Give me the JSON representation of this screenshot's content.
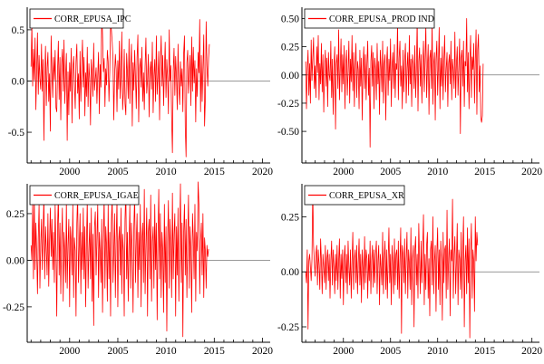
{
  "figure": {
    "background": "#ffffff",
    "line_color": "#ff0000",
    "axis_color": "#000000",
    "zero_line_color": "#777777"
  },
  "chart_data": [
    {
      "type": "line",
      "legend": "CORR_EPUSA_IPC",
      "legend_position": "top-left",
      "grid": false,
      "xlim": [
        1995.6,
        2020.8
      ],
      "ylim": [
        -0.8,
        0.72
      ],
      "x_ticks": [
        2000,
        2005,
        2010,
        2015,
        2020
      ],
      "x_tick_labels": [
        "2000",
        "2005",
        "2010",
        "2015",
        "2020"
      ],
      "y_ticks": [
        0.5,
        0.0,
        -0.5
      ],
      "y_tick_labels": [
        "0.5",
        "0.0",
        "-0.5"
      ],
      "x_start": 1996.0,
      "x_step": 0.0833,
      "series": [
        {
          "name": "CORR_EPUSA_IPC",
          "values": [
            0.14,
            0.55,
            -0.05,
            0.31,
            0.01,
            0.42,
            -0.28,
            0.12,
            0.47,
            -0.13,
            0.25,
            0.02,
            -0.08,
            0.36,
            -0.1,
            0.21,
            -0.58,
            0.05,
            0.34,
            -0.24,
            0.13,
            0.28,
            -0.2,
            0.07,
            -0.49,
            0.44,
            0.1,
            -0.16,
            0.23,
            0.01,
            0.3,
            -0.26,
            -0.3,
            0.11,
            0.39,
            -0.18,
            0.23,
            -0.38,
            0.15,
            0.31,
            -0.1,
            0.4,
            -0.22,
            0.05,
            0.27,
            -0.58,
            0.09,
            -0.33,
            0.18,
            -0.1,
            0.32,
            -0.41,
            0.12,
            0.24,
            -0.03,
            -0.27,
            0.19,
            0.36,
            -0.12,
            0.07,
            -0.37,
            0.29,
            -0.2,
            0.14,
            0.4,
            -0.06,
            0.23,
            -0.34,
            0.08,
            -0.15,
            0.33,
            -0.25,
            0.17,
            0.02,
            -0.43,
            0.21,
            0.09,
            -0.15,
            0.37,
            -0.09,
            0.02,
            0.13,
            -0.22,
            0.05,
            0.28,
            -0.32,
            0.16,
            -0.06,
            0.68,
            0.45,
            0.09,
            0.22,
            -0.25,
            0.12,
            -0.04,
            0.3,
            0.19,
            -0.2,
            0.1,
            0.57,
            0.5,
            0.38,
            0.22,
            -0.38,
            0.07,
            0.26,
            0.11,
            -0.3,
            0.2,
            -0.08,
            0.39,
            -0.17,
            0.05,
            0.48,
            -0.28,
            -0.12,
            0.31,
            -0.22,
            -0.33,
            0.27,
            0.07,
            -0.17,
            0.41,
            -0.22,
            0.15,
            0.36,
            -0.44,
            0.18,
            -0.09,
            0.3,
            0.04,
            -0.27,
            0.23,
            0.45,
            -0.4,
            0.12,
            0.22,
            -0.06,
            0.33,
            -0.2,
            0.08,
            -0.28,
            0.15,
            0.42,
            -0.12,
            0.01,
            0.26,
            -0.35,
            0.1,
            0.19,
            -0.08,
            0.38,
            -0.31,
            0.05,
            0.21,
            -0.2,
            0.44,
            -0.13,
            0.03,
            0.29,
            -0.38,
            0.17,
            0.44,
            -0.05,
            0.25,
            -0.24,
            0.1,
            0.38,
            -0.16,
            0.21,
            0.03,
            -0.32,
            0.5,
            0.0,
            0.15,
            -0.35,
            -0.7,
            0.1,
            0.32,
            -0.14,
            0.24,
            0.05,
            -0.28,
            0.36,
            -0.06,
            -0.23,
            0.19,
            -0.05,
            0.12,
            -0.3,
            0.27,
            0.44,
            -0.45,
            -0.74,
            0.18,
            0.3,
            -0.12,
            0.06,
            0.25,
            -0.24,
            0.43,
            -0.1,
            0.33,
            -0.02,
            0.2,
            -0.4,
            0.12,
            -0.15,
            0.28,
            0.08,
            0.6,
            -0.3,
            0.25,
            -0.2,
            0.13,
            0.45,
            -0.44,
            -0.18,
            0.58,
            0.15,
            -0.05,
            0.22,
            0.36
          ]
        }
      ]
    },
    {
      "type": "line",
      "legend": "CORR_EPUSA_PROD IND",
      "legend_position": "top-left",
      "grid": false,
      "xlim": [
        1995.6,
        2020.8
      ],
      "ylim": [
        -0.78,
        0.6
      ],
      "x_ticks": [
        2000,
        2005,
        2010,
        2015,
        2020
      ],
      "x_tick_labels": [
        "2000",
        "2005",
        "2010",
        "2015",
        "2020"
      ],
      "y_ticks": [
        0.5,
        0.25,
        0.0,
        -0.25,
        -0.5
      ],
      "y_tick_labels": [
        "0.50",
        "0.25",
        "0.00",
        "-0.25",
        "-0.50"
      ],
      "x_start": 1996.0,
      "x_step": 0.0833,
      "series": [
        {
          "name": "CORR_EPUSA_PROD IND",
          "values": [
            0.12,
            -0.3,
            0.05,
            0.22,
            -0.18,
            0.1,
            -0.25,
            0.31,
            -0.05,
            0.15,
            0.33,
            -0.12,
            0.08,
            -0.2,
            0.25,
            0.02,
            0.35,
            -0.22,
            0.1,
            -0.08,
            0.28,
            -0.15,
            0.18,
            -0.33,
            0.06,
            0.22,
            -0.1,
            0.15,
            -0.28,
            0.2,
            0.0,
            -0.05,
            0.3,
            -0.2,
            0.14,
            -0.35,
            0.08,
            0.25,
            -0.48,
            0.1,
            0.18,
            -0.12,
            0.4,
            -0.22,
            0.05,
            0.32,
            -0.15,
            0.18,
            -0.08,
            0.26,
            -0.3,
            0.1,
            0.22,
            -0.18,
            0.04,
            0.3,
            -0.25,
            0.14,
            -0.06,
            0.35,
            -0.14,
            0.2,
            -0.28,
            0.08,
            0.28,
            -0.2,
            0.12,
            0.05,
            -0.3,
            0.22,
            -0.1,
            0.15,
            -0.4,
            0.08,
            0.25,
            -0.12,
            0.18,
            -0.22,
            0.1,
            0.3,
            -0.18,
            0.06,
            -0.64,
            0.12,
            0.26,
            -0.1,
            0.2,
            -0.3,
            0.15,
            0.05,
            -0.22,
            0.28,
            -0.08,
            0.12,
            -0.35,
            0.22,
            0.07,
            -0.15,
            0.3,
            -0.25,
            0.1,
            0.18,
            -0.4,
            0.1,
            0.25,
            -0.18,
            0.14,
            -0.05,
            0.32,
            -0.28,
            0.08,
            0.2,
            -0.12,
            0.27,
            -0.2,
            0.1,
            0.05,
            0.47,
            -0.22,
            0.15,
            0.3,
            -0.1,
            0.08,
            -0.3,
            0.22,
            -0.15,
            0.12,
            0.28,
            -0.25,
            0.06,
            0.2,
            -0.18,
            0.35,
            -0.08,
            0.14,
            -0.28,
            0.18,
            0.1,
            -0.12,
            0.26,
            -0.2,
            0.05,
            0.5,
            -0.32,
            0.12,
            0.24,
            -0.1,
            0.18,
            -0.25,
            0.08,
            0.3,
            -0.15,
            0.12,
            0.45,
            -0.2,
            0.07,
            0.27,
            -0.35,
            0.15,
            0.22,
            -0.12,
            0.48,
            -0.26,
            0.1,
            0.2,
            -0.4,
            0.14,
            0.3,
            -0.18,
            0.08,
            0.42,
            -0.3,
            0.15,
            -0.1,
            0.25,
            -0.22,
            0.12,
            0.35,
            -0.15,
            0.06,
            0.2,
            -0.28,
            0.1,
            0.18,
            -0.08,
            0.3,
            -0.22,
            0.14,
            0.04,
            -0.12,
            0.38,
            -0.2,
            0.1,
            0.25,
            -0.18,
            0.06,
            0.32,
            -0.52,
            0.15,
            0.22,
            -0.1,
            0.3,
            -0.28,
            0.12,
            0.08,
            0.5,
            -0.15,
            0.2,
            -0.3,
            0.1,
            0.35,
            -0.2,
            0.16,
            0.05,
            0.28,
            -0.25,
            0.12,
            0.4,
            -0.35,
            0.22,
            0.36,
            -0.15,
            0.08,
            -0.38,
            -0.42,
            -0.36,
            0.1
          ]
        }
      ]
    },
    {
      "type": "line",
      "legend": "CORR_EPUSA_IGAE",
      "legend_position": "top-left",
      "grid": false,
      "xlim": [
        1995.6,
        2020.8
      ],
      "ylim": [
        -0.44,
        0.41
      ],
      "x_ticks": [
        2000,
        2005,
        2010,
        2015,
        2020
      ],
      "x_tick_labels": [
        "2000",
        "2005",
        "2010",
        "2015",
        "2020"
      ],
      "y_ticks": [
        0.25,
        0.0,
        -0.25
      ],
      "y_tick_labels": [
        "0.25",
        "0.00",
        "-0.25"
      ],
      "x_start": 1996.0,
      "x_step": 0.0833,
      "series": [
        {
          "name": "CORR_EPUSA_IGAE",
          "values": [
            0.08,
            0.0,
            0.3,
            -0.1,
            0.35,
            -0.05,
            0.2,
            0.05,
            -0.18,
            0.12,
            0.3,
            -0.15,
            0.08,
            0.22,
            -0.05,
            0.15,
            0.35,
            -0.1,
            0.18,
            0.06,
            -0.08,
            0.25,
            -0.14,
            0.1,
            0.28,
            0.02,
            0.22,
            -0.05,
            0.15,
            -0.12,
            0.3,
            0.05,
            -0.3,
            0.18,
            0.35,
            -0.08,
            0.2,
            -0.18,
            0.1,
            0.28,
            -0.22,
            0.15,
            0.05,
            -0.12,
            0.32,
            -0.15,
            0.08,
            0.22,
            -0.25,
            0.18,
            0.1,
            -0.08,
            0.3,
            -0.2,
            0.12,
            0.05,
            -0.3,
            0.2,
            0.35,
            -0.12,
            0.08,
            0.25,
            -0.18,
            0.15,
            -0.05,
            0.28,
            -0.1,
            0.18,
            -0.25,
            0.1,
            0.32,
            -0.15,
            0.05,
            0.2,
            -0.1,
            0.28,
            -0.22,
            0.14,
            -0.35,
            0.18,
            0.26,
            -0.08,
            0.12,
            0.3,
            -0.2,
            0.15,
            0.05,
            -0.12,
            0.22,
            -0.28,
            0.1,
            0.34,
            -0.15,
            0.18,
            0.08,
            -0.22,
            0.3,
            -0.1,
            0.15,
            -0.3,
            0.2,
            0.35,
            -0.12,
            0.05,
            0.25,
            -0.2,
            0.12,
            0.32,
            -0.25,
            0.1,
            0.18,
            -0.08,
            0.28,
            -0.18,
            0.14,
            0.05,
            -0.3,
            0.22,
            0.38,
            -0.1,
            0.15,
            -0.22,
            0.08,
            0.3,
            -0.15,
            0.2,
            0.05,
            -0.28,
            0.18,
            0.35,
            -0.12,
            0.1,
            0.25,
            -0.2,
            0.15,
            -0.05,
            0.3,
            -0.25,
            0.12,
            0.2,
            -0.12,
            0.38,
            -0.18,
            0.08,
            0.28,
            -0.3,
            0.15,
            0.22,
            -0.1,
            0.35,
            -0.22,
            0.1,
            0.18,
            -0.15,
            0.3,
            -0.05,
            0.2,
            -0.32,
            0.12,
            0.38,
            -0.1,
            0.25,
            -0.2,
            0.15,
            0.05,
            -0.28,
            0.3,
            -0.12,
            0.18,
            -0.38,
            0.1,
            0.32,
            -0.15,
            0.22,
            0.06,
            -0.2,
            0.36,
            -0.1,
            0.14,
            0.25,
            -0.3,
            0.18,
            -0.08,
            0.28,
            -0.22,
            0.12,
            0.41,
            -0.12,
            0.2,
            -0.41,
            0.15,
            0.3,
            -0.08,
            0.22,
            -0.2,
            0.1,
            0.35,
            -0.15,
            0.18,
            0.05,
            -0.28,
            0.25,
            0.12,
            -0.1,
            0.3,
            -0.22,
            0.15,
            0.05,
            0.42,
            0.3,
            -0.18,
            0.1,
            0.2,
            -0.08,
            0.25,
            -0.2,
            0.12,
            0.05,
            -0.15,
            0.08,
            0.02,
            0.06
          ]
        }
      ]
    },
    {
      "type": "line",
      "legend": "CORR_EPUSA_XR",
      "legend_position": "top-left",
      "grid": false,
      "xlim": [
        1995.6,
        2020.8
      ],
      "ylim": [
        -0.32,
        0.4
      ],
      "x_ticks": [
        2000,
        2005,
        2010,
        2015,
        2020
      ],
      "x_tick_labels": [
        "2000",
        "2005",
        "2010",
        "2015",
        "2020"
      ],
      "y_ticks": [
        0.25,
        0.0,
        -0.25
      ],
      "y_tick_labels": [
        "0.25",
        "0.00",
        "-0.25"
      ],
      "x_start": 1996.0,
      "x_step": 0.0833,
      "series": [
        {
          "name": "CORR_EPUSA_XR",
          "values": [
            0.0,
            -0.05,
            0.1,
            -0.26,
            0.05,
            0.08,
            0.02,
            -0.04,
            0.06,
            0.38,
            0.12,
            0.05,
            -0.02,
            0.08,
            0.12,
            -0.06,
            0.1,
            0.03,
            -0.08,
            0.15,
            0.05,
            -0.1,
            0.08,
            0.02,
            -0.05,
            0.12,
            -0.08,
            0.06,
            0.1,
            -0.04,
            0.08,
            -0.12,
            0.05,
            0.14,
            -0.06,
            0.1,
            0.02,
            -0.1,
            0.08,
            -0.04,
            0.12,
            -0.08,
            0.05,
            0.15,
            -0.12,
            0.08,
            -0.03,
            0.1,
            -0.15,
            0.06,
            0.12,
            -0.05,
            0.08,
            -0.1,
            0.14,
            0.02,
            -0.06,
            0.1,
            -0.12,
            0.05,
            0.18,
            -0.08,
            0.06,
            0.1,
            -0.05,
            0.12,
            -0.1,
            0.04,
            0.15,
            -0.06,
            0.08,
            -0.14,
            0.1,
            0.02,
            -0.08,
            0.16,
            -0.05,
            0.1,
            0.06,
            -0.12,
            0.08,
            -0.04,
            0.14,
            -0.1,
            0.05,
            0.12,
            -0.07,
            0.1,
            -0.05,
            0.08,
            0.14,
            -0.1,
            0.05,
            0.12,
            -0.15,
            0.08,
            0.02,
            -0.06,
            0.18,
            -0.1,
            0.06,
            0.14,
            -0.08,
            0.1,
            -0.12,
            0.05,
            0.2,
            -0.05,
            0.08,
            -0.15,
            0.12,
            0.04,
            -0.1,
            0.15,
            -0.06,
            0.08,
            0.1,
            -0.08,
            0.14,
            -0.12,
            0.05,
            0.2,
            -0.28,
            0.12,
            0.08,
            -0.05,
            0.15,
            -0.1,
            0.06,
            0.18,
            -0.12,
            0.1,
            0.04,
            -0.08,
            0.2,
            -0.15,
            0.06,
            0.12,
            -0.25,
            0.1,
            0.16,
            -0.06,
            0.08,
            -0.12,
            0.22,
            0.05,
            -0.1,
            0.14,
            -0.05,
            0.1,
            0.26,
            -0.15,
            0.08,
            -0.08,
            0.12,
            0.18,
            -0.12,
            0.06,
            -0.2,
            0.1,
            0.14,
            -0.06,
            0.25,
            -0.1,
            0.05,
            0.12,
            -0.18,
            0.08,
            0.2,
            -0.08,
            0.1,
            -0.15,
            0.14,
            0.05,
            -0.22,
            0.18,
            -0.05,
            0.1,
            0.12,
            -0.12,
            0.28,
            -0.08,
            0.06,
            0.15,
            -0.2,
            0.1,
            0.05,
            0.33,
            -0.12,
            0.08,
            0.16,
            -0.1,
            0.05,
            0.22,
            -0.15,
            0.1,
            0.06,
            -0.08,
            0.18,
            -0.12,
            0.1,
            0.25,
            -0.25,
            0.05,
            0.12,
            -0.1,
            0.2,
            -0.05,
            0.15,
            -0.3,
            0.08,
            0.22,
            -0.12,
            0.1,
            0.05,
            -0.18,
            0.25,
            0.05,
            0.18,
            0.12
          ]
        }
      ]
    }
  ]
}
